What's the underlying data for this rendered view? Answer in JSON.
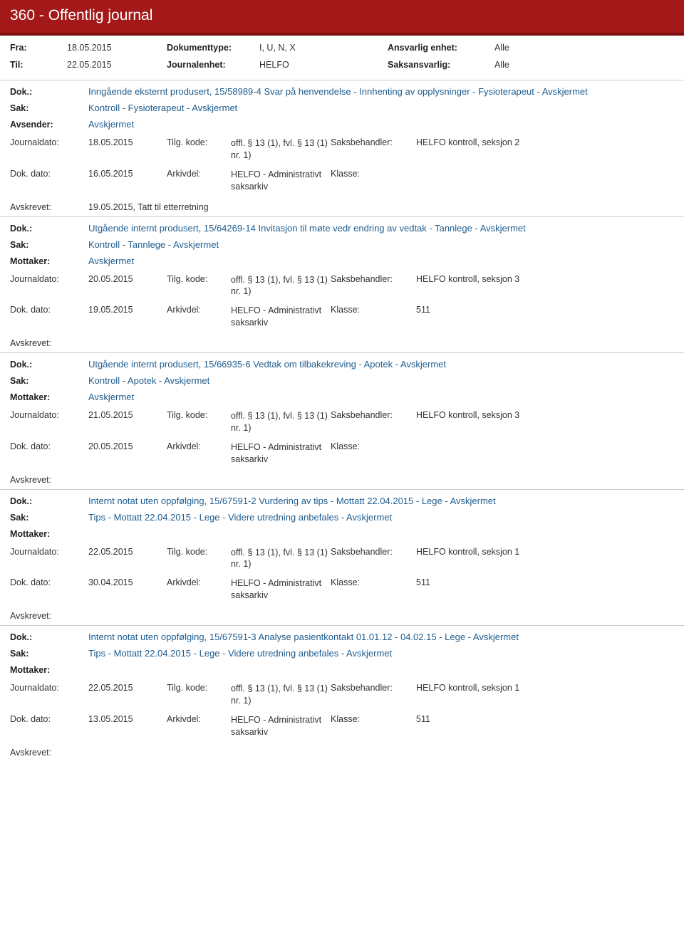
{
  "header": {
    "title": "360 - Offentlig journal"
  },
  "meta": {
    "fra_label": "Fra:",
    "fra_value": "18.05.2015",
    "til_label": "Til:",
    "til_value": "22.05.2015",
    "doktype_label": "Dokumenttype:",
    "doktype_value": "I, U, N, X",
    "journalenhet_label": "Journalenhet:",
    "journalenhet_value": "HELFO",
    "ansvarlig_label": "Ansvarlig enhet:",
    "ansvarlig_value": "Alle",
    "saksansvarlig_label": "Saksansvarlig:",
    "saksansvarlig_value": "Alle"
  },
  "labels": {
    "dok": "Dok.:",
    "sak": "Sak:",
    "avsender": "Avsender:",
    "mottaker": "Mottaker:",
    "journaldato": "Journaldato:",
    "tilgkode": "Tilg. kode:",
    "saksbeh": "Saksbehandler:",
    "dokdato": "Dok. dato:",
    "arkivdel": "Arkivdel:",
    "klasse": "Klasse:",
    "avskrevet": "Avskrevet:"
  },
  "common": {
    "tilgkode_value": "offl. § 13 (1), fvl. § 13 (1) nr. 1)",
    "arkivdel_value": "HELFO - Administrativt saksarkiv",
    "avskjermet": "Avskjermet"
  },
  "entries": [
    {
      "dok": "Inngående eksternt produsert, 15/58989-4 Svar på henvendelse - Innhenting av opplysninger - Fysioterapeut - Avskjermet",
      "sak": "Kontroll - Fysioterapeut - Avskjermet",
      "part_label": "Avsender:",
      "part_value": "Avskjermet",
      "journaldato": "18.05.2015",
      "saksbeh": "HELFO kontroll, seksjon 2",
      "dokdato": "16.05.2015",
      "klasse": "",
      "avskrevet": "19.05.2015, Tatt til etterretning"
    },
    {
      "dok": "Utgående internt produsert, 15/64269-14 Invitasjon til møte vedr endring av vedtak - Tannlege - Avskjermet",
      "sak": "Kontroll - Tannlege - Avskjermet",
      "part_label": "Mottaker:",
      "part_value": "Avskjermet",
      "journaldato": "20.05.2015",
      "saksbeh": "HELFO kontroll, seksjon 3",
      "dokdato": "19.05.2015",
      "klasse": "511",
      "avskrevet": ""
    },
    {
      "dok": "Utgående internt produsert, 15/66935-6 Vedtak om tilbakekreving - Apotek - Avskjermet",
      "sak": "Kontroll - Apotek - Avskjermet",
      "part_label": "Mottaker:",
      "part_value": "Avskjermet",
      "journaldato": "21.05.2015",
      "saksbeh": "HELFO kontroll, seksjon 3",
      "dokdato": "20.05.2015",
      "klasse": "",
      "avskrevet": ""
    },
    {
      "dok": "Internt notat uten oppfølging, 15/67591-2 Vurdering av tips - Mottatt 22.04.2015 - Lege - Avskjermet",
      "sak": "Tips - Mottatt 22.04.2015 - Lege - Videre utredning anbefales - Avskjermet",
      "part_label": "Mottaker:",
      "part_value": "",
      "journaldato": "22.05.2015",
      "saksbeh": "HELFO kontroll, seksjon 1",
      "dokdato": "30.04.2015",
      "klasse": "511",
      "avskrevet": ""
    },
    {
      "dok": "Internt notat uten oppfølging, 15/67591-3 Analyse pasientkontakt 01.01.12 - 04.02.15 - Lege - Avskjermet",
      "sak": "Tips - Mottatt 22.04.2015 - Lege - Videre utredning anbefales - Avskjermet",
      "part_label": "Mottaker:",
      "part_value": "",
      "journaldato": "22.05.2015",
      "saksbeh": "HELFO kontroll, seksjon 1",
      "dokdato": "13.05.2015",
      "klasse": "511",
      "avskrevet": ""
    }
  ]
}
